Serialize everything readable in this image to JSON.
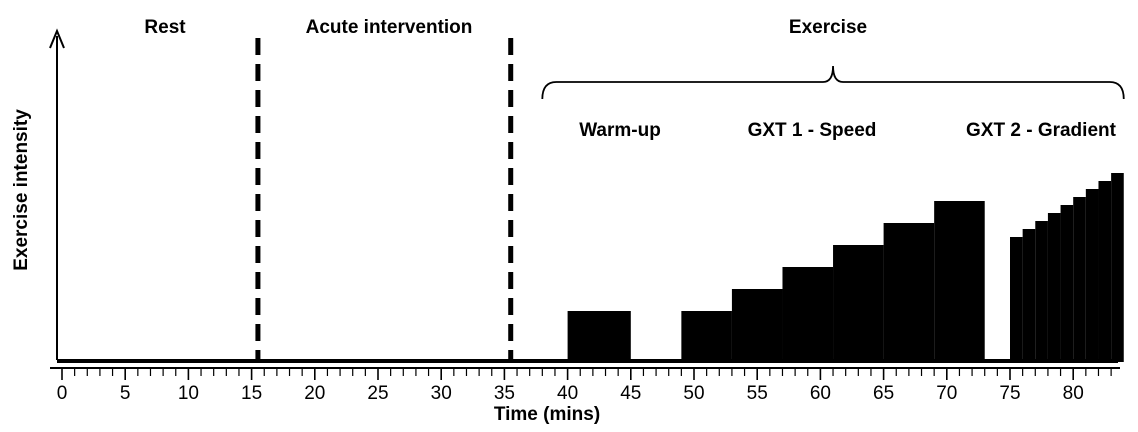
{
  "chart_data": {
    "type": "step-diagram",
    "xlabel": "Time (mins)",
    "ylabel": "Exercise intensity",
    "xlim": [
      -0.5,
      84
    ],
    "x_ticks": [
      0,
      5,
      10,
      15,
      20,
      25,
      30,
      35,
      40,
      45,
      50,
      55,
      60,
      65,
      70,
      75,
      80
    ],
    "y_axis_numeric": false,
    "phase_labels": {
      "rest": "Rest",
      "acute": "Acute intervention",
      "exercise": "Exercise",
      "warmup": "Warm-up",
      "gxt1": "GXT 1 - Speed",
      "gxt2": "GXT 2 - Gradient"
    },
    "phase_dividers": [
      15.5,
      35.5
    ],
    "exercise_bracket": [
      38,
      84
    ],
    "intensity_scale_max": 100,
    "warmup_block": {
      "start": 40,
      "end": 45,
      "intensity": 25
    },
    "gxt1_steps": [
      {
        "start": 49,
        "end": 53,
        "intensity": 25
      },
      {
        "start": 53,
        "end": 57,
        "intensity": 36
      },
      {
        "start": 57,
        "end": 61,
        "intensity": 47
      },
      {
        "start": 61,
        "end": 65,
        "intensity": 58
      },
      {
        "start": 65,
        "end": 69,
        "intensity": 69
      },
      {
        "start": 69,
        "end": 73,
        "intensity": 80
      }
    ],
    "gxt2_steps": [
      {
        "start": 75,
        "end": 76,
        "intensity": 62
      },
      {
        "start": 76,
        "end": 77,
        "intensity": 66
      },
      {
        "start": 77,
        "end": 78,
        "intensity": 70
      },
      {
        "start": 78,
        "end": 79,
        "intensity": 74
      },
      {
        "start": 79,
        "end": 80,
        "intensity": 78
      },
      {
        "start": 80,
        "end": 81,
        "intensity": 82
      },
      {
        "start": 81,
        "end": 82,
        "intensity": 86
      },
      {
        "start": 82,
        "end": 83,
        "intensity": 90
      },
      {
        "start": 83,
        "end": 84,
        "intensity": 94
      }
    ]
  }
}
